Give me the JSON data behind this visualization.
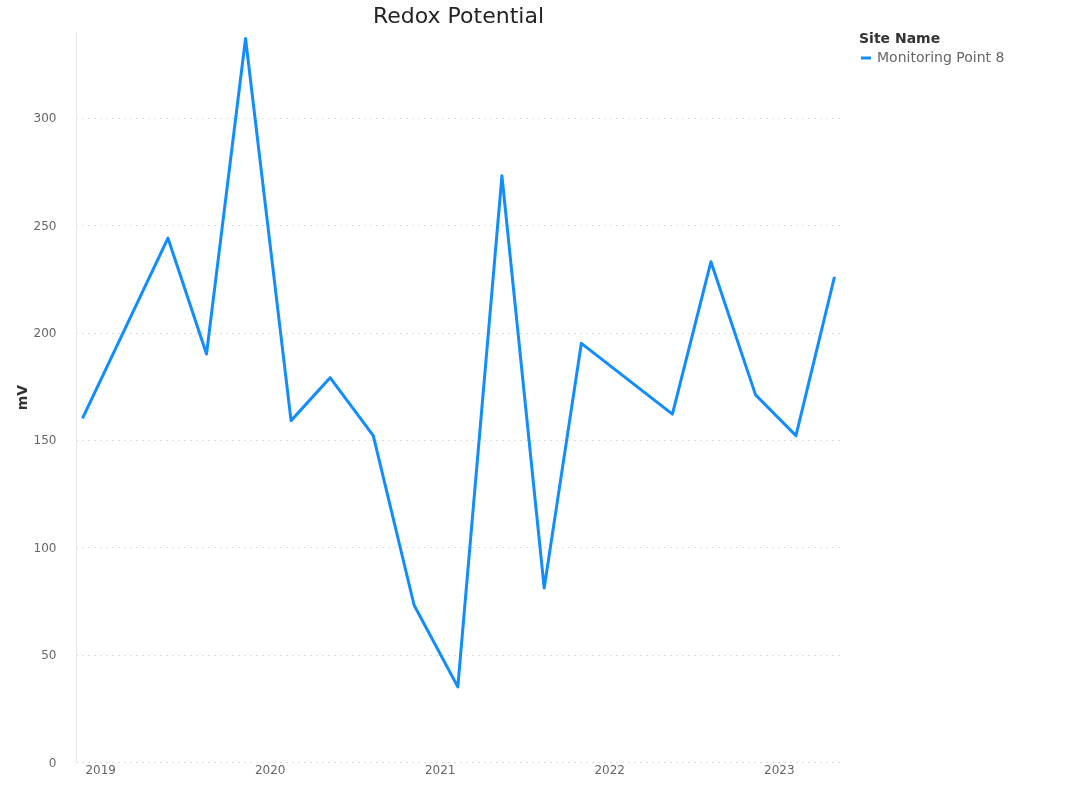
{
  "chart_data": {
    "type": "line",
    "title": "Redox Potential",
    "ylabel": "mV",
    "legend_title": "Site Name",
    "x": [
      "2018-11-24",
      "2019-05-27",
      "2019-08-18",
      "2019-11-10",
      "2020-02-16",
      "2020-05-10",
      "2020-08-11",
      "2020-11-07",
      "2021-02-09",
      "2021-05-15",
      "2021-08-14",
      "2021-11-02",
      "2022-05-17",
      "2022-08-08",
      "2022-11-12",
      "2023-02-07",
      "2023-05-01"
    ],
    "series": [
      {
        "name": "Monitoring Point 8",
        "color": "#118dff",
        "values": [
          160,
          244,
          190,
          337,
          159,
          179,
          152,
          73,
          35,
          273,
          81,
          195,
          162,
          233,
          171,
          152,
          226
        ]
      }
    ],
    "xlim": [
      "2018-11-10",
      "2023-05-15"
    ],
    "xticks": [
      "2019",
      "2020",
      "2021",
      "2022",
      "2023"
    ],
    "ylim": [
      0,
      340
    ],
    "yticks": [
      0,
      50,
      100,
      150,
      200,
      250,
      300
    ],
    "grid": "y",
    "legend": "right",
    "marker": "none",
    "line_style": "solid"
  }
}
